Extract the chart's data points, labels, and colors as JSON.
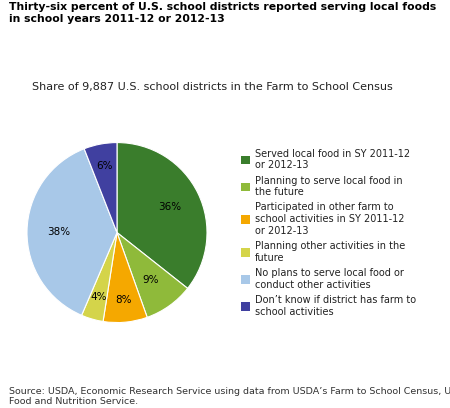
{
  "title": "Thirty-six percent of U.S. school districts reported serving local foods in school years 2011-12 or 2012-13",
  "subtitle": "Share of 9,887 U.S. school districts in the Farm to School Census",
  "source": "Source: USDA, Economic Research Service using data from USDA’s Farm to School Census, USDA\nFood and Nutrition Service.",
  "slices": [
    36,
    9,
    8,
    4,
    38,
    6
  ],
  "colors": [
    "#3a7d2c",
    "#8fba3a",
    "#f5a800",
    "#d4d44a",
    "#a8c8e8",
    "#4040a0"
  ],
  "labels": [
    "36%",
    "9%",
    "8%",
    "4%",
    "38%",
    "6%"
  ],
  "legend_labels": [
    "Served local food in SY 2011-12\nor 2012-13",
    "Planning to serve local food in\nthe future",
    "Participated in other farm to\nschool activities in SY 2011-12\nor 2012-13",
    "Planning other activities in the\nfuture",
    "No plans to serve local food or\nconduct other activities",
    "Don’t know if district has farm to\nschool activities"
  ],
  "startangle": 90,
  "background_color": "#ffffff",
  "title_fontsize": 7.8,
  "subtitle_fontsize": 8.0,
  "label_fontsize": 7.5,
  "legend_fontsize": 7.0,
  "source_fontsize": 6.8
}
